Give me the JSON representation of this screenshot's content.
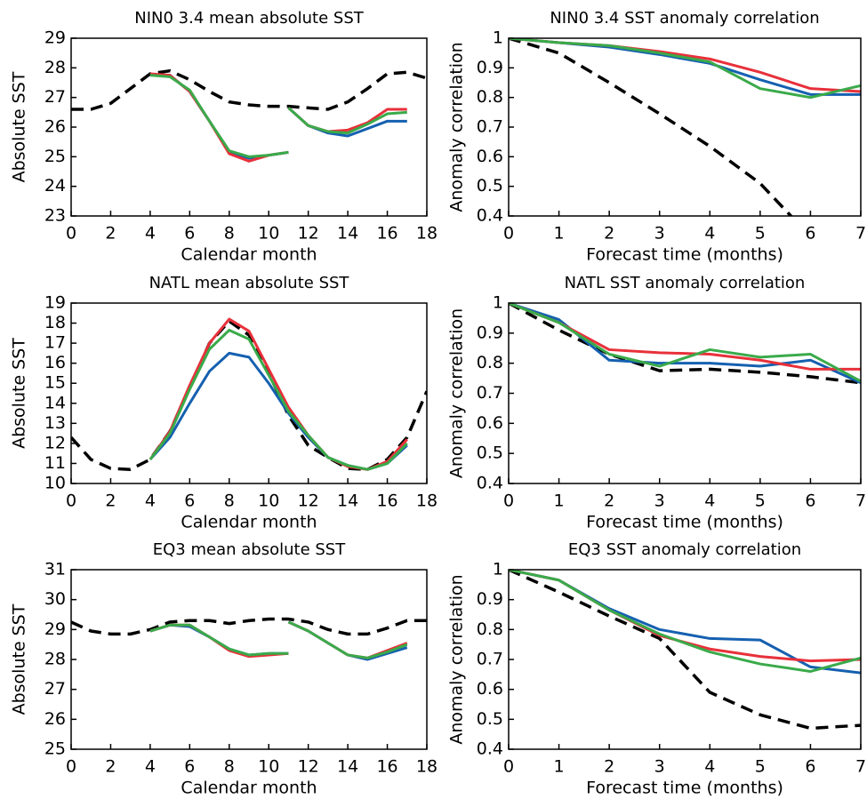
{
  "chart_data": [
    {
      "type": "line",
      "title": "NIN0 3.4 mean absolute SST",
      "xlabel": "Calendar month",
      "ylabel": "Absolute SST",
      "xlim": [
        0,
        18
      ],
      "xticks": [
        0,
        2,
        4,
        6,
        8,
        10,
        12,
        14,
        16,
        18
      ],
      "ylim": [
        23,
        29
      ],
      "yticks": [
        23,
        24,
        25,
        26,
        27,
        28,
        29
      ],
      "series": [
        {
          "color": "#000000",
          "linestyle": "dashed",
          "x": [
            0,
            1,
            2,
            3,
            4,
            5,
            6,
            7,
            8,
            9,
            10,
            11,
            12,
            13,
            14,
            15,
            16,
            17,
            18
          ],
          "values": [
            26.6,
            26.6,
            26.8,
            27.3,
            27.8,
            27.9,
            27.6,
            27.2,
            26.85,
            26.75,
            26.7,
            26.7,
            26.65,
            26.6,
            26.85,
            27.3,
            27.8,
            27.85,
            27.65
          ]
        },
        {
          "color": "#1560b0",
          "linestyle": "solid",
          "x": [
            4,
            5,
            6,
            7,
            8,
            9,
            10,
            11,
            null,
            11,
            12,
            13,
            14,
            15,
            16,
            17
          ],
          "values": [
            27.75,
            27.75,
            27.2,
            26.2,
            25.15,
            24.95,
            25.05,
            25.15,
            null,
            26.65,
            26.05,
            25.8,
            25.7,
            25.95,
            26.2,
            26.2
          ]
        },
        {
          "color": "#e8303a",
          "linestyle": "solid",
          "x": [
            4,
            5,
            6,
            7,
            8,
            9,
            10,
            11,
            null,
            11,
            12,
            13,
            14,
            15,
            16,
            17
          ],
          "values": [
            27.8,
            27.75,
            27.2,
            26.2,
            25.1,
            24.85,
            25.05,
            25.15,
            null,
            26.65,
            26.05,
            25.85,
            25.9,
            26.15,
            26.6,
            26.6
          ]
        },
        {
          "color": "#3aaa4a",
          "linestyle": "solid",
          "x": [
            4,
            5,
            6,
            7,
            8,
            9,
            10,
            11,
            null,
            11,
            12,
            13,
            14,
            15,
            16,
            17
          ],
          "values": [
            27.75,
            27.7,
            27.25,
            26.2,
            25.2,
            25.0,
            25.05,
            25.15,
            null,
            26.65,
            26.05,
            25.85,
            25.8,
            26.1,
            26.45,
            26.5
          ]
        }
      ]
    },
    {
      "type": "line",
      "title": "NIN0 3.4 SST anomaly correlation",
      "xlabel": "Forecast time (months)",
      "ylabel": "Anomaly correlation",
      "xlim": [
        0,
        7
      ],
      "xticks": [
        0,
        1,
        2,
        3,
        4,
        5,
        6,
        7
      ],
      "ylim": [
        0.4,
        1
      ],
      "yticks": [
        0.4,
        0.5,
        0.6,
        0.7,
        0.8,
        0.9,
        1
      ],
      "series": [
        {
          "color": "#000000",
          "linestyle": "dashed",
          "x": [
            0,
            1,
            2,
            3,
            4,
            5,
            6
          ],
          "values": [
            1,
            0.95,
            0.85,
            0.745,
            0.635,
            0.51,
            0.33
          ]
        },
        {
          "color": "#1560b0",
          "linestyle": "solid",
          "x": [
            0,
            1,
            2,
            3,
            4,
            5,
            6,
            7
          ],
          "values": [
            1,
            0.985,
            0.97,
            0.945,
            0.915,
            0.86,
            0.81,
            0.81
          ]
        },
        {
          "color": "#e8303a",
          "linestyle": "solid",
          "x": [
            0,
            1,
            2,
            3,
            4,
            5,
            6,
            7
          ],
          "values": [
            1,
            0.985,
            0.975,
            0.955,
            0.93,
            0.885,
            0.83,
            0.82
          ]
        },
        {
          "color": "#3aaa4a",
          "linestyle": "solid",
          "x": [
            0,
            1,
            2,
            3,
            4,
            5,
            6,
            7
          ],
          "values": [
            1,
            0.985,
            0.975,
            0.95,
            0.92,
            0.83,
            0.8,
            0.84
          ]
        }
      ]
    },
    {
      "type": "line",
      "title": "NATL mean absolute SST",
      "xlabel": "Calendar month",
      "ylabel": "Absolute SST",
      "xlim": [
        0,
        18
      ],
      "xticks": [
        0,
        2,
        4,
        6,
        8,
        10,
        12,
        14,
        16,
        18
      ],
      "ylim": [
        10,
        19
      ],
      "yticks": [
        10,
        11,
        12,
        13,
        14,
        15,
        16,
        17,
        18,
        19
      ],
      "series": [
        {
          "color": "#000000",
          "linestyle": "dashed",
          "x": [
            0,
            1,
            2,
            3,
            4,
            5,
            6,
            7,
            8,
            9,
            10,
            11,
            12,
            13,
            14,
            15,
            16,
            17,
            18
          ],
          "values": [
            12.3,
            11.2,
            10.75,
            10.7,
            11.2,
            12.6,
            14.8,
            17.0,
            18.1,
            17.4,
            15.5,
            13.4,
            11.9,
            11.3,
            10.75,
            10.7,
            11.2,
            12.3,
            14.6
          ]
        },
        {
          "color": "#1560b0",
          "linestyle": "solid",
          "x": [
            4,
            5,
            6,
            7,
            8,
            9,
            10,
            11,
            12,
            13,
            14,
            15,
            16,
            17
          ],
          "values": [
            11.2,
            12.3,
            14.0,
            15.6,
            16.5,
            16.3,
            15.0,
            13.5,
            12.3,
            11.3,
            10.9,
            10.7,
            11.0,
            11.9
          ]
        },
        {
          "color": "#e8303a",
          "linestyle": "solid",
          "x": [
            4,
            5,
            6,
            7,
            8,
            9,
            10,
            11,
            12,
            13,
            14,
            15,
            16,
            17
          ],
          "values": [
            11.2,
            12.6,
            14.9,
            17.0,
            18.2,
            17.6,
            15.7,
            13.8,
            12.4,
            11.3,
            10.85,
            10.7,
            11.1,
            12.2
          ]
        },
        {
          "color": "#3aaa4a",
          "linestyle": "solid",
          "x": [
            4,
            5,
            6,
            7,
            8,
            9,
            10,
            11,
            12,
            13,
            14,
            15,
            16,
            17
          ],
          "values": [
            11.2,
            12.5,
            14.7,
            16.7,
            17.65,
            17.2,
            15.4,
            13.6,
            12.4,
            11.3,
            10.9,
            10.7,
            11.0,
            12.0
          ]
        }
      ]
    },
    {
      "type": "line",
      "title": "NATL SST anomaly correlation",
      "xlabel": "Forecast time (months)",
      "ylabel": "Anomaly correlation",
      "xlim": [
        0,
        7
      ],
      "xticks": [
        0,
        1,
        2,
        3,
        4,
        5,
        6,
        7
      ],
      "ylim": [
        0.4,
        1
      ],
      "yticks": [
        0.4,
        0.5,
        0.6,
        0.7,
        0.8,
        0.9,
        1
      ],
      "series": [
        {
          "color": "#000000",
          "linestyle": "dashed",
          "x": [
            0,
            1,
            2,
            3,
            4,
            5,
            6,
            7
          ],
          "values": [
            1,
            0.91,
            0.83,
            0.775,
            0.78,
            0.77,
            0.755,
            0.735
          ]
        },
        {
          "color": "#1560b0",
          "linestyle": "solid",
          "x": [
            0,
            1,
            2,
            3,
            4,
            5,
            6,
            7
          ],
          "values": [
            1,
            0.945,
            0.81,
            0.8,
            0.8,
            0.79,
            0.81,
            0.735
          ]
        },
        {
          "color": "#e8303a",
          "linestyle": "solid",
          "x": [
            0,
            1,
            2,
            3,
            4,
            5,
            6,
            7
          ],
          "values": [
            1,
            0.935,
            0.845,
            0.835,
            0.83,
            0.81,
            0.78,
            0.78
          ]
        },
        {
          "color": "#3aaa4a",
          "linestyle": "solid",
          "x": [
            0,
            1,
            2,
            3,
            4,
            5,
            6,
            7
          ],
          "values": [
            1,
            0.935,
            0.83,
            0.79,
            0.845,
            0.82,
            0.83,
            0.74
          ]
        }
      ]
    },
    {
      "type": "line",
      "title": "EQ3 mean absolute SST",
      "xlabel": "Calendar month",
      "ylabel": "Absolute SST",
      "xlim": [
        0,
        18
      ],
      "xticks": [
        0,
        2,
        4,
        6,
        8,
        10,
        12,
        14,
        16,
        18
      ],
      "ylim": [
        25,
        31
      ],
      "yticks": [
        25,
        26,
        27,
        28,
        29,
        30,
        31
      ],
      "series": [
        {
          "color": "#000000",
          "linestyle": "dashed",
          "x": [
            0,
            1,
            2,
            3,
            4,
            5,
            6,
            7,
            8,
            9,
            10,
            11,
            12,
            13,
            14,
            15,
            16,
            17,
            18
          ],
          "values": [
            29.25,
            28.95,
            28.85,
            28.85,
            29.0,
            29.25,
            29.3,
            29.3,
            29.2,
            29.3,
            29.35,
            29.35,
            29.25,
            29.0,
            28.85,
            28.85,
            29.05,
            29.3,
            29.3
          ]
        },
        {
          "color": "#1560b0",
          "linestyle": "solid",
          "x": [
            4,
            5,
            6,
            7,
            8,
            9,
            10,
            11,
            null,
            11,
            12,
            13,
            14,
            15,
            16,
            17
          ],
          "values": [
            28.95,
            29.15,
            29.1,
            28.75,
            28.35,
            28.15,
            28.2,
            28.2,
            null,
            29.25,
            28.95,
            28.55,
            28.15,
            28.0,
            28.2,
            28.4
          ]
        },
        {
          "color": "#e8303a",
          "linestyle": "solid",
          "x": [
            4,
            5,
            6,
            7,
            8,
            9,
            10,
            11,
            null,
            11,
            12,
            13,
            14,
            15,
            16,
            17
          ],
          "values": [
            28.95,
            29.15,
            29.15,
            28.75,
            28.3,
            28.1,
            28.15,
            28.2,
            null,
            29.25,
            28.95,
            28.55,
            28.15,
            28.05,
            28.3,
            28.55
          ]
        },
        {
          "color": "#3aaa4a",
          "linestyle": "solid",
          "x": [
            4,
            5,
            6,
            7,
            8,
            9,
            10,
            11,
            null,
            11,
            12,
            13,
            14,
            15,
            16,
            17
          ],
          "values": [
            28.95,
            29.15,
            29.15,
            28.75,
            28.35,
            28.15,
            28.2,
            28.2,
            null,
            29.25,
            28.95,
            28.55,
            28.15,
            28.05,
            28.25,
            28.5
          ]
        }
      ]
    },
    {
      "type": "line",
      "title": "EQ3 SST anomaly correlation",
      "xlabel": "Forecast time (months)",
      "ylabel": "Anomaly correlation",
      "xlim": [
        0,
        7
      ],
      "xticks": [
        0,
        1,
        2,
        3,
        4,
        5,
        6,
        7
      ],
      "ylim": [
        0.4,
        1
      ],
      "yticks": [
        0.4,
        0.5,
        0.6,
        0.7,
        0.8,
        0.9,
        1
      ],
      "series": [
        {
          "color": "#000000",
          "linestyle": "dashed",
          "x": [
            0,
            1,
            2,
            3,
            4,
            5,
            6,
            7
          ],
          "values": [
            1,
            0.925,
            0.845,
            0.77,
            0.59,
            0.515,
            0.47,
            0.48
          ]
        },
        {
          "color": "#1560b0",
          "linestyle": "solid",
          "x": [
            0,
            1,
            2,
            3,
            4,
            5,
            6,
            7
          ],
          "values": [
            1,
            0.965,
            0.87,
            0.8,
            0.77,
            0.765,
            0.675,
            0.655
          ]
        },
        {
          "color": "#e8303a",
          "linestyle": "solid",
          "x": [
            0,
            1,
            2,
            3,
            4,
            5,
            6,
            7
          ],
          "values": [
            1,
            0.965,
            0.865,
            0.78,
            0.735,
            0.71,
            0.695,
            0.7
          ]
        },
        {
          "color": "#3aaa4a",
          "linestyle": "solid",
          "x": [
            0,
            1,
            2,
            3,
            4,
            5,
            6,
            7
          ],
          "values": [
            1,
            0.965,
            0.865,
            0.785,
            0.725,
            0.685,
            0.66,
            0.705
          ]
        }
      ]
    }
  ]
}
